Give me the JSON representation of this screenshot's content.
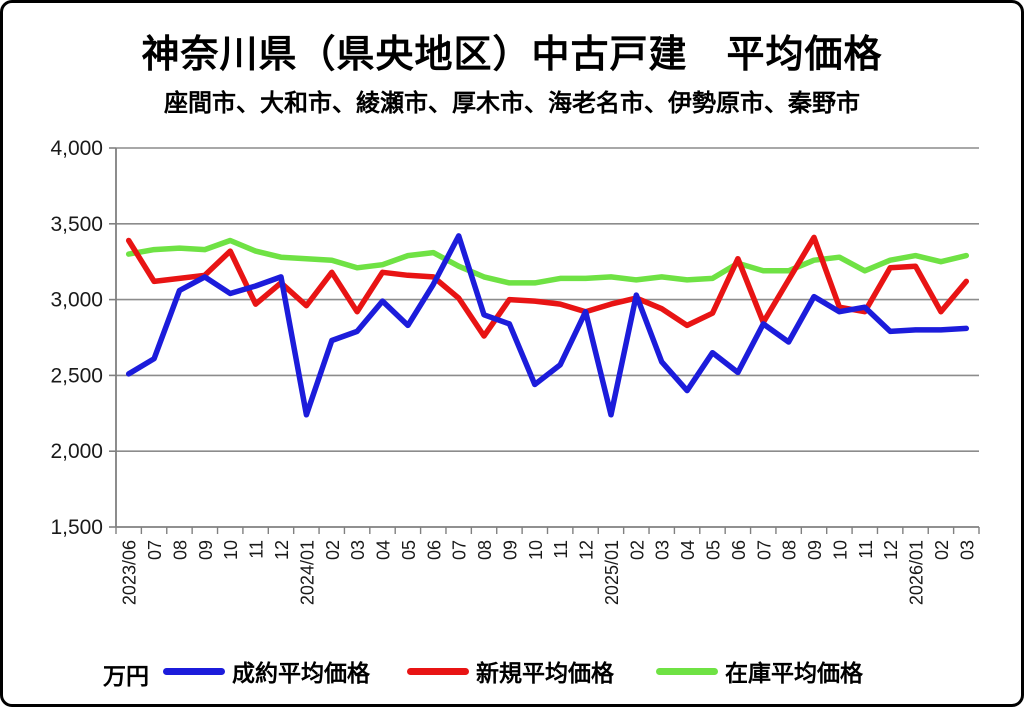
{
  "title": "神奈川県（県央地区）中古戸建　平均価格",
  "subtitle": "座間市、大和市、綾瀬市、厚木市、海老名市、伊勢原市、秦野市",
  "unit_label": "万円",
  "chart_data": {
    "type": "line",
    "title": "神奈川県（県央地区）中古戸建　平均価格",
    "subtitle": "座間市、大和市、綾瀬市、厚木市、海老名市、伊勢原市、秦野市",
    "ylabel": "万円",
    "ylim": [
      1500,
      4000
    ],
    "y_tick_step": 500,
    "y_ticks": [
      "1,500",
      "2,000",
      "2,500",
      "3,000",
      "3,500",
      "4,000"
    ],
    "grid": true,
    "legend_position": "bottom",
    "categories": [
      "2023/06",
      "07",
      "08",
      "09",
      "10",
      "11",
      "12",
      "2024/01",
      "02",
      "03",
      "04",
      "05",
      "06",
      "07",
      "08",
      "09",
      "10",
      "11",
      "12",
      "2025/01",
      "02",
      "03",
      "04",
      "05",
      "06",
      "07",
      "08",
      "09",
      "10",
      "11",
      "12",
      "2026/01",
      "02",
      "03"
    ],
    "series": [
      {
        "name": "成約平均価格",
        "color": "#1c1cdb",
        "values": [
          2510,
          2610,
          3060,
          3150,
          3040,
          3090,
          3150,
          2240,
          2730,
          2790,
          2990,
          2830,
          3100,
          3420,
          2900,
          2840,
          2440,
          2570,
          2920,
          2240,
          3030,
          2590,
          2400,
          2650,
          2520,
          2840,
          2720,
          3020,
          2920,
          2950,
          2790,
          2800,
          2800,
          2810
        ]
      },
      {
        "name": "新規平均価格",
        "color": "#e81414",
        "values": [
          3390,
          3120,
          3140,
          3160,
          3320,
          2970,
          3110,
          2960,
          3180,
          2920,
          3180,
          3160,
          3150,
          3010,
          2760,
          3000,
          2990,
          2970,
          2920,
          2970,
          3010,
          2940,
          2830,
          2910,
          3270,
          2850,
          3130,
          3410,
          2950,
          2920,
          3210,
          3220,
          2920,
          3120
        ]
      },
      {
        "name": "在庫平均価格",
        "color": "#6fe244",
        "values": [
          3300,
          3330,
          3340,
          3330,
          3390,
          3320,
          3280,
          3270,
          3260,
          3210,
          3230,
          3290,
          3310,
          3220,
          3150,
          3110,
          3110,
          3140,
          3140,
          3150,
          3130,
          3150,
          3130,
          3140,
          3240,
          3190,
          3190,
          3260,
          3280,
          3190,
          3260,
          3290,
          3250,
          3290
        ]
      }
    ],
    "colors": {
      "grid": "#8c8c8c",
      "axis": "#808080",
      "text": "#000000",
      "background": "#ffffff"
    }
  }
}
